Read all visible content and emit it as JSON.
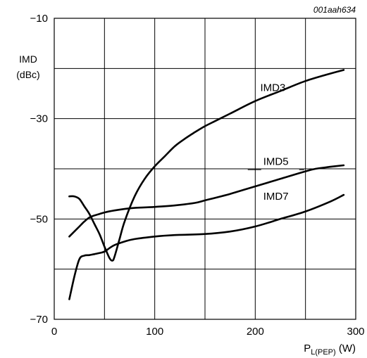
{
  "chart_data": {
    "type": "line",
    "code": "001aah634",
    "ylabel_lines": [
      "IMD",
      "(dBc)"
    ],
    "xlabel": {
      "main": "P",
      "sub": "L(PEP)",
      "unit": " (W)"
    },
    "xlim": [
      0,
      300
    ],
    "ylim": [
      -70,
      -10
    ],
    "xticks": [
      0,
      100,
      200,
      300
    ],
    "yticks": [
      -70,
      -50,
      -30,
      -10
    ],
    "xgrid": [
      0,
      50,
      100,
      150,
      200,
      250,
      300
    ],
    "ygrid": [
      -70,
      -60,
      -50,
      -40,
      -30,
      -20,
      -10
    ],
    "series": [
      {
        "name": "IMD3",
        "x": [
          15,
          20,
          25,
          30,
          35,
          40,
          45,
          50,
          55,
          58,
          60,
          65,
          70,
          80,
          90,
          100,
          110,
          120,
          130,
          140,
          150,
          160,
          175,
          200,
          225,
          250,
          275,
          288
        ],
        "y": [
          -45.5,
          -45.5,
          -46,
          -47.5,
          -49,
          -51,
          -53,
          -55.5,
          -57.8,
          -58.3,
          -57.5,
          -54,
          -50.5,
          -45.5,
          -42,
          -39.5,
          -37.5,
          -35.5,
          -34,
          -32.7,
          -31.5,
          -30.5,
          -29,
          -26.5,
          -24.5,
          -22.5,
          -21,
          -20.3
        ]
      },
      {
        "name": "IMD5",
        "x": [
          15,
          20,
          25,
          30,
          35,
          40,
          45,
          50,
          60,
          70,
          80,
          100,
          120,
          140,
          150,
          175,
          200,
          225,
          250,
          260,
          275,
          288
        ],
        "y": [
          -53.5,
          -52.5,
          -51.5,
          -50.5,
          -49.7,
          -49.3,
          -49,
          -48.7,
          -48.3,
          -48,
          -47.8,
          -47.6,
          -47.3,
          -46.8,
          -46.3,
          -45,
          -43.5,
          -42,
          -40.5,
          -40,
          -39.6,
          -39.3
        ]
      },
      {
        "name": "IMD7",
        "x": [
          15,
          20,
          25,
          30,
          35,
          40,
          45,
          50,
          55,
          60,
          70,
          80,
          100,
          120,
          150,
          175,
          200,
          225,
          250,
          275,
          288
        ],
        "y": [
          -66,
          -61.5,
          -58,
          -57.3,
          -57.2,
          -57,
          -56.8,
          -56.5,
          -55.8,
          -55.2,
          -54.5,
          -54,
          -53.5,
          -53.2,
          -53,
          -52.5,
          -51.5,
          -50,
          -48.5,
          -46.5,
          -45.2
        ]
      }
    ],
    "labels": [
      {
        "series": "IMD3",
        "text": "IMD3",
        "x": 205,
        "y": -24.5
      },
      {
        "series": "IMD5",
        "text": "IMD5",
        "x": 208,
        "y": -39.2,
        "leader": true
      },
      {
        "series": "IMD7",
        "text": "IMD7",
        "x": 208,
        "y": -46.2
      }
    ]
  }
}
